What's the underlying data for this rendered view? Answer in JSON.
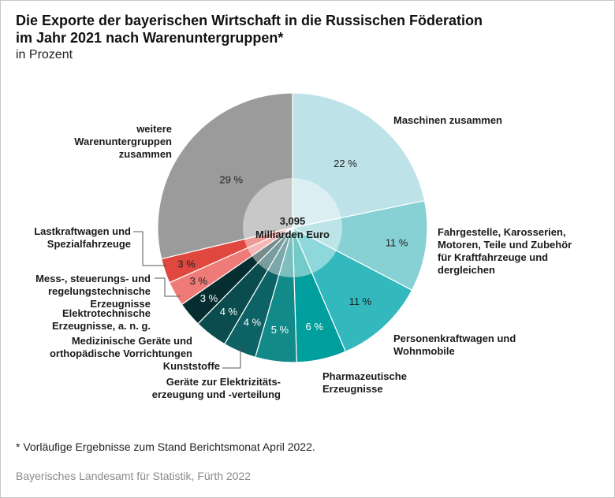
{
  "title_line1": "Die Exporte der bayerischen Wirtschaft in die Russischen Föderation",
  "title_line2": "im Jahr 2021 nach Warenuntergruppen*",
  "subtitle": "in Prozent",
  "footnote": "* Vorläufige Ergebnisse zum Stand Berichtsmonat April 2022.",
  "source": "Bayerisches Landesamt für Statistik, Fürth 2022",
  "chart_data": {
    "type": "pie",
    "center_label": [
      "3,095",
      "Milliarden Euro"
    ],
    "slices": [
      {
        "label": [
          "Maschinen zusammen"
        ],
        "value": 22,
        "value_label": "22 %",
        "color": "#bde2e8",
        "text_color": "#222222"
      },
      {
        "label": [
          "Fahrgestelle, Karosserien,",
          "Motoren, Teile und Zubehör",
          "für Kraftfahrzeuge und",
          "dergleichen"
        ],
        "value": 11,
        "value_label": "11 %",
        "color": "#87d0d4",
        "text_color": "#222222"
      },
      {
        "label": [
          "Personenkraftwagen und",
          "Wohnmobile"
        ],
        "value": 11,
        "value_label": "11 %",
        "color": "#32b8bd",
        "text_color": "#222222"
      },
      {
        "label": [
          "Pharmazeutische",
          "Erzeugnisse"
        ],
        "value": 6,
        "value_label": "6 %",
        "color": "#009e9c",
        "text_color": "#ffffff"
      },
      {
        "label": [
          "Geräte zur Elektrizitäts-",
          "erzeugung und -verteilung"
        ],
        "value": 5,
        "value_label": "5 %",
        "color": "#138a8a",
        "text_color": "#ffffff"
      },
      {
        "label": [
          "Kunststoffe"
        ],
        "value": 4,
        "value_label": "4 %",
        "color": "#0d6265",
        "text_color": "#ffffff"
      },
      {
        "label": [
          "Medizinische Geräte und",
          "orthopädische Vorrichtungen"
        ],
        "value": 4,
        "value_label": "4 %",
        "color": "#0b4c4f",
        "text_color": "#ffffff"
      },
      {
        "label": [
          "Elektrotechnische",
          "Erzeugnisse, a. n. g."
        ],
        "value": 3,
        "value_label": "3 %",
        "color": "#062e30",
        "text_color": "#ffffff"
      },
      {
        "label": [
          "Mess-, steuerungs- und",
          "regelungstechnische",
          "Erzeugnisse"
        ],
        "value": 3,
        "value_label": "3 %",
        "color": "#ee7b78",
        "text_color": "#222222"
      },
      {
        "label": [
          "Lastkraftwagen und",
          "Spezialfahrzeuge"
        ],
        "value": 3,
        "value_label": "3 %",
        "color": "#e0473f",
        "text_color": "#222222"
      },
      {
        "label": [
          "weitere",
          "Warenuntergruppen",
          "zusammen"
        ],
        "value": 29,
        "value_label": "29 %",
        "color": "#9b9b9b",
        "text_color": "#222222"
      }
    ]
  }
}
